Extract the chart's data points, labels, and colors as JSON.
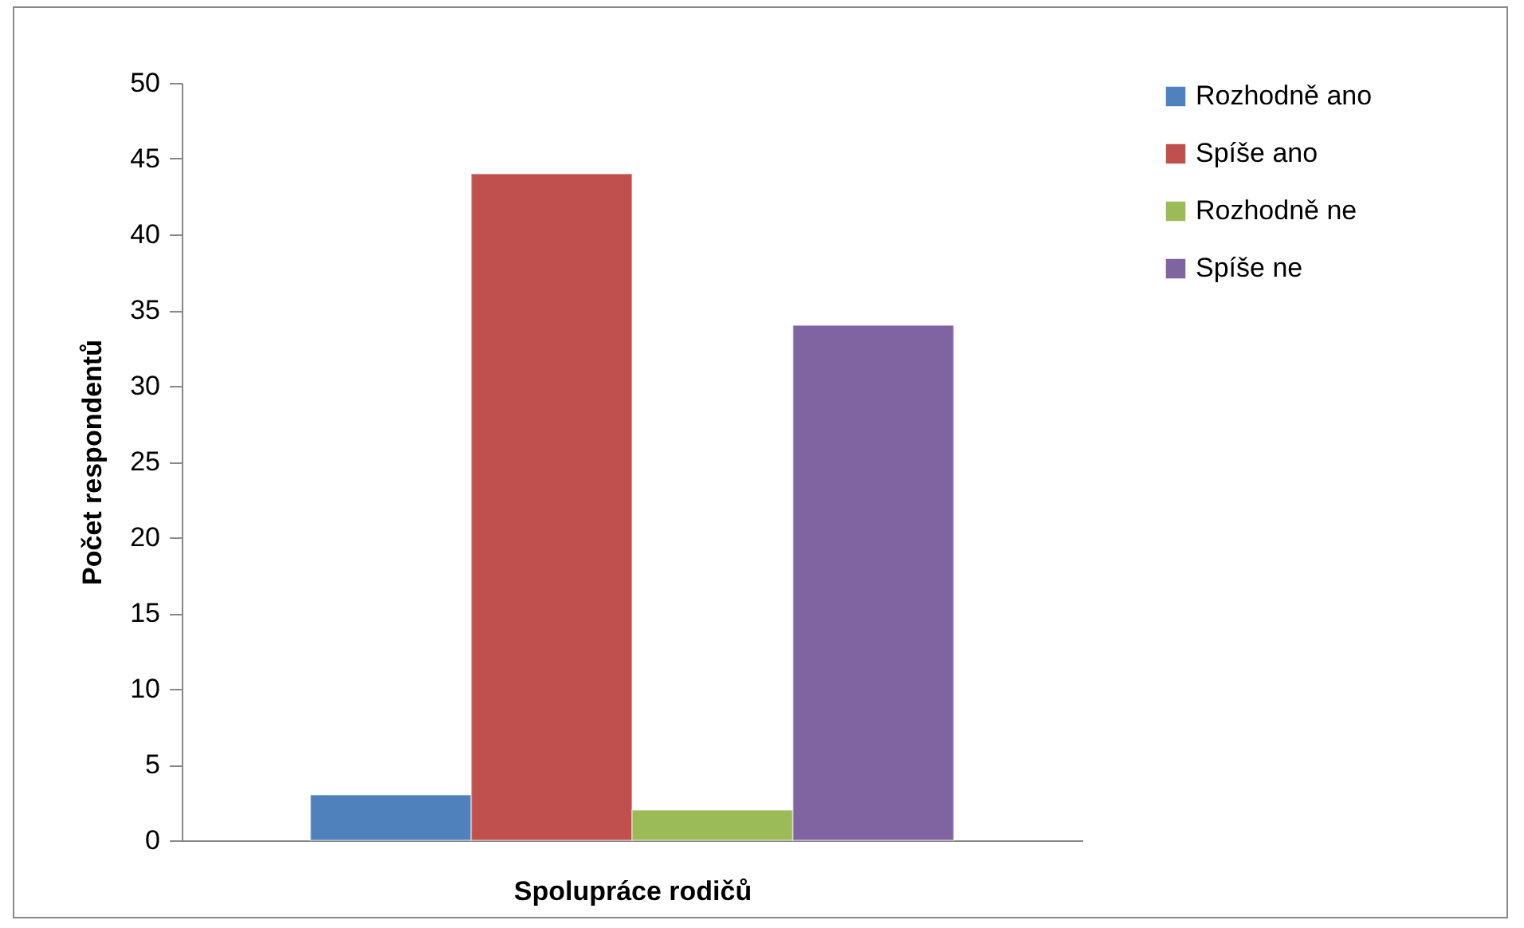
{
  "chart_data": {
    "type": "bar",
    "xlabel": "Spolupráce rodičů",
    "ylabel": "Počet respondentů",
    "categories": [
      null
    ],
    "series": [
      {
        "name": "Rozhodně ano",
        "color": "#4f81bd",
        "values": [
          3
        ]
      },
      {
        "name": "Spíše ano",
        "color": "#c0504d",
        "values": [
          44
        ]
      },
      {
        "name": "Rozhodně ne",
        "color": "#9bbb59",
        "values": [
          2
        ]
      },
      {
        "name": "Spíše ne",
        "color": "#8064a2",
        "values": [
          34
        ]
      }
    ],
    "ylim": [
      0,
      50
    ],
    "yticks": [
      0,
      5,
      10,
      15,
      20,
      25,
      30,
      35,
      40,
      45,
      50
    ],
    "grid": false,
    "legend": "right"
  }
}
